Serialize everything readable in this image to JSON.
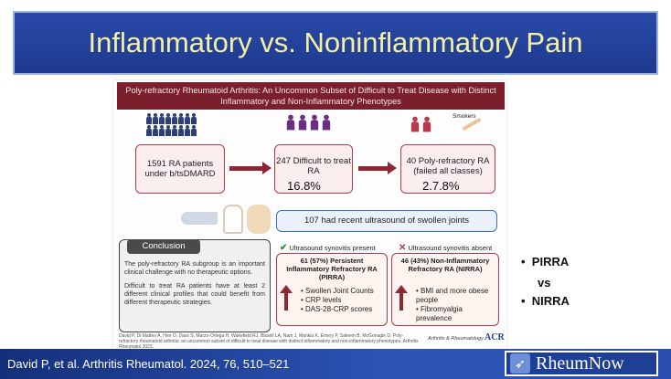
{
  "slide": {
    "title": "Inflammatory vs. Noninflammatory Pain",
    "footer_citation": "David P, et al. Arthritis Rheumatol. 2024, 76, 510–521",
    "logo_text": "RheumNow",
    "bullets": [
      "PIRRA",
      "vs",
      "NIRRA"
    ]
  },
  "figure": {
    "header": "Poly-refractory Rheumatoid Arthritis: An Uncommon Subset of Difficult to Treat Disease with Distinct Inflammatory and Non-Inflammatory Phenotypes",
    "smokers_label": "Smokers",
    "box1": "1591 RA patients under b/tsDMARD",
    "box2": "247 Difficult to treat RA",
    "box3": "40 Poly-refractory RA (failed all classes)",
    "pct1": "16.8%",
    "pct2": "2.7.8%",
    "ultrasound_box": "107 had recent ultrasound of swollen joints",
    "synovitis_present": "Ultrasound synovitis present",
    "synovitis_absent": "Ultrasound synovitis absent",
    "pirra_title": "61 (57%) Persistent Inflammatory Refractory RA (PIRRA)",
    "pirra_items": [
      "Swollen Joint Counts",
      "CRP levels",
      "DAS-28-CRP scores"
    ],
    "nirra_title": "46 (43%) Non-Inflammatory Refractory RA (NIRRA)",
    "nirra_items": [
      "BMI and more obese people",
      "Fibromyalgia prevalence"
    ],
    "conclusion_title": "Conclusion",
    "conclusion_p1": "The poly-refractory RA subgroup is an important clinical challenge with no therapeutic options.",
    "conclusion_p2": "Difficult to treat RA patients have at least 2 different clinical profiles that could benefit from different therapeutic strategies.",
    "citation_small": "David P, Di Matteo A, Hen O, Dass S, Marzo-Ortega H, Wakefield RJ, Bissell LA, Nam J, Mankia K, Emery P, Saleem B, McGonagle D. Poly-refractory rheumatoid arthritis: an uncommon subset of difficult to treat disease with distinct inflammatory and non-inflammatory phenotypes. Arthritis Rheumatol 2023.",
    "journal_logo": "Arthritis & Rheumatology",
    "acr_logo": "ACR"
  },
  "colors": {
    "title_bar": "#1e3a8f",
    "title_text": "#f3f0a0",
    "figure_header": "#7a1f2b",
    "accent_red": "#8e2633",
    "people_blue": "#2c3f7a",
    "people_purple": "#6b2f82",
    "people_red": "#b53a4a"
  }
}
